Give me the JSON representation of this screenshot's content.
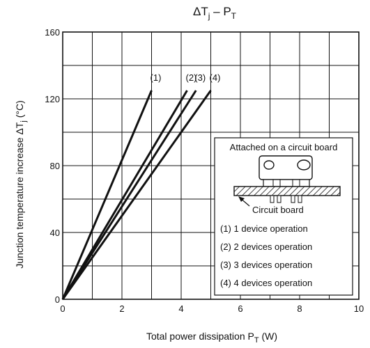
{
  "chart_data": {
    "type": "line",
    "title_main": "ΔT",
    "title_main_sub": "j",
    "title_dash": " – ",
    "title_p": "P",
    "title_p_sub": "T",
    "xlabel_text": "Total power dissipation",
    "xlabel_symbol": "P",
    "xlabel_symbol_sub": "T",
    "xlabel_unit": "(W)",
    "ylabel_text": "Junction temperature increase",
    "ylabel_symbol": "ΔT",
    "ylabel_symbol_sub": "j",
    "ylabel_unit": "(°C)",
    "xlim": [
      0,
      10
    ],
    "ylim": [
      0,
      160
    ],
    "x_ticks": [
      "0",
      "2",
      "4",
      "6",
      "8",
      "10"
    ],
    "y_ticks": [
      "0",
      "40",
      "80",
      "120",
      "160"
    ],
    "grid": true,
    "series": [
      {
        "name": "(1)",
        "points": [
          [
            0,
            0
          ],
          [
            3.0,
            125
          ]
        ]
      },
      {
        "name": "(2)",
        "points": [
          [
            0,
            0
          ],
          [
            4.2,
            125
          ]
        ]
      },
      {
        "name": "(3)",
        "points": [
          [
            0,
            0
          ],
          [
            4.5,
            125
          ]
        ]
      },
      {
        "name": "(4)",
        "points": [
          [
            0,
            0
          ],
          [
            5.0,
            125
          ]
        ]
      }
    ],
    "legend": {
      "title": "Attached on a circuit board",
      "diagram_label": "Circuit board",
      "items": [
        "(1) 1 device operation",
        "(2) 2 devices operation",
        "(3) 3 devices operation",
        "(4) 4 devices operation"
      ]
    }
  }
}
